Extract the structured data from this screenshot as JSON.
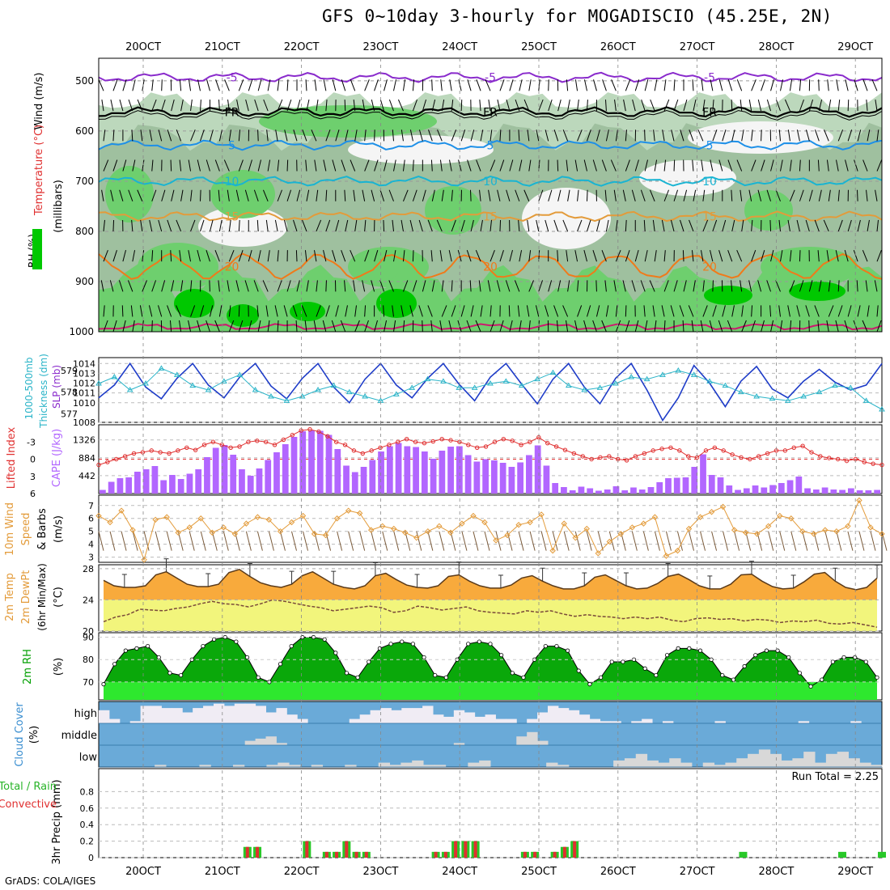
{
  "title": "GFS 0~10day 3-hourly for MOGADISCIO (45.25E, 2N)",
  "credit": "GrADS: COLA/IGES",
  "dates": [
    "20OCT",
    "21OCT",
    "22OCT",
    "23OCT",
    "24OCT",
    "25OCT",
    "26OCT",
    "27OCT",
    "28OCT",
    "29OCT"
  ],
  "colors": {
    "rh_dark": "#00c800",
    "rh_mid": "#6ecf6e",
    "rh_light": "#bcd8bc",
    "temp_line": "#f08c2a",
    "wind_line": "#000000",
    "slp_line": "#1e3cc8",
    "thick_line": "#2ab4c8",
    "cape_bar": "#b266ff",
    "li_line": "#e03030",
    "w10_line": "#e39b3a",
    "t2m_fill": "#f8aa3c",
    "dew_fill": "#f2f57c",
    "rh2_fill": "#00b400",
    "cloud_blue": "#6aaad8",
    "cloud_grey": "#d8d8d8",
    "precip_total": "#28c828",
    "precip_conv": "#e03030"
  },
  "chart_data": [
    {
      "type": "heatmap",
      "name": "upper-air cross section",
      "ylabel": "(millibars)",
      "legend": [
        "RH (%)",
        "Temperature (°C)",
        "Wind (m/s)"
      ],
      "yticks": [
        500,
        600,
        700,
        800,
        900,
        1000
      ],
      "ylim": [
        1000,
        455
      ],
      "temp_contours": [
        {
          "label": "-5",
          "pressure": 493
        },
        {
          "label": "FR",
          "pressure": 562
        },
        {
          "label": "5",
          "pressure": 628
        },
        {
          "label": "10",
          "pressure": 700
        },
        {
          "label": "15",
          "pressure": 770
        },
        {
          "label": "20",
          "pressure": 870
        }
      ]
    },
    {
      "type": "line",
      "name": "SLP and thickness",
      "ylabel_left": "1000-500mb Thickness (dm)",
      "ylabel_right": "SLP (mb)",
      "thick_ticks": [
        577,
        578,
        579
      ],
      "slp_ticks": [
        1008,
        1010,
        1011,
        1012,
        1013,
        1014
      ],
      "slp_range": [
        1008,
        1014.6
      ],
      "slp": [
        1010.5,
        1011.8,
        1014,
        1011.6,
        1010.4,
        1012.5,
        1014,
        1011.8,
        1010.5,
        1012.6,
        1014,
        1011.7,
        1010.4,
        1012.5,
        1014,
        1011.6,
        1010,
        1012.4,
        1014,
        1011.8,
        1010.5,
        1012.5,
        1014,
        1011.9,
        1010.2,
        1012.6,
        1014,
        1011.9,
        1009.9,
        1012.4,
        1014,
        1011.6,
        1009.9,
        1012.5,
        1014,
        1011.3,
        1008.2,
        1010.5,
        1013.8,
        1012,
        1009.6,
        1012.2,
        1013.7,
        1011.4,
        1010.5,
        1012.2,
        1013.4,
        1012.1,
        1011.3,
        1011.8,
        1014
      ],
      "thickness": [
        578.4,
        578.7,
        578.1,
        578.4,
        579.1,
        578.8,
        578.3,
        578.1,
        578.5,
        578.8,
        578.1,
        577.8,
        577.6,
        577.8,
        578.1,
        578.3,
        578.0,
        577.8,
        577.6,
        577.9,
        578.2,
        578.6,
        578.5,
        578.2,
        578.2,
        578.4,
        578.5,
        578.3,
        578.6,
        578.9,
        578.3,
        578.1,
        578.2,
        578.4,
        578.7,
        578.6,
        578.8,
        579.0,
        578.8,
        578.5,
        578.3,
        578.0,
        577.8,
        577.7,
        577.6,
        577.8,
        578.0,
        578.3,
        578.2,
        577.6,
        577.2
      ]
    },
    {
      "type": "bar",
      "name": "CAPE and lifted index",
      "ylabel_left": "Lifted Index",
      "ylabel_right": "CAPE (J/kg)",
      "cape_ticks": [
        442,
        884,
        1326
      ],
      "li_ticks": [
        -3,
        0,
        3,
        6
      ],
      "cape_range": [
        0,
        1700
      ],
      "li_range": [
        -6,
        6
      ],
      "cape": [
        90,
        290,
        380,
        400,
        540,
        600,
        680,
        330,
        460,
        360,
        490,
        600,
        900,
        1130,
        1200,
        960,
        600,
        440,
        620,
        830,
        1020,
        1220,
        1400,
        1540,
        1560,
        1550,
        1450,
        1100,
        690,
        530,
        660,
        830,
        1040,
        1170,
        1250,
        1170,
        1150,
        1040,
        860,
        1060,
        1160,
        1170,
        950,
        790,
        850,
        820,
        760,
        660,
        770,
        950,
        1190,
        690,
        260,
        160,
        80,
        170,
        130,
        70,
        100,
        180,
        80,
        150,
        100,
        160,
        280,
        380,
        390,
        400,
        660,
        970,
        460,
        400,
        200,
        90,
        130,
        200,
        150,
        210,
        260,
        330,
        420,
        130,
        100,
        150,
        100,
        90,
        130,
        80,
        80,
        90
      ],
      "li": [
        1.0,
        0.5,
        0.0,
        -0.5,
        -1.0,
        -1.2,
        -1.5,
        -1.2,
        -1.0,
        -1.5,
        -2.0,
        -1.6,
        -2.5,
        -3.0,
        -2.5,
        -2.0,
        -2.2,
        -3.0,
        -3.2,
        -3.0,
        -2.5,
        -3.4,
        -4.2,
        -5.0,
        -5.2,
        -4.8,
        -4.0,
        -3.0,
        -2.5,
        -1.5,
        -1.0,
        -1.5,
        -2.0,
        -2.5,
        -3.0,
        -3.5,
        -3.0,
        -2.8,
        -3.1,
        -3.5,
        -3.3,
        -3.0,
        -2.5,
        -2.0,
        -2.2,
        -3.0,
        -3.5,
        -3.2,
        -2.5,
        -3.0,
        -3.8,
        -2.8,
        -2.2,
        -1.6,
        -1.0,
        -0.5,
        0.0,
        -0.3,
        -0.5,
        0.0,
        0.2,
        -0.5,
        -1.0,
        -1.5,
        -1.8,
        -2.0,
        -1.5,
        -0.5,
        -0.3,
        -1.5,
        -2.0,
        -1.5,
        -0.8,
        -0.3,
        0.0,
        -0.5,
        -1.0,
        -1.5,
        -1.5,
        -2.0,
        -2.3,
        -1.2,
        -0.5,
        -0.2,
        0.0,
        0.3,
        0.0,
        0.5,
        0.8,
        1.0
      ]
    },
    {
      "type": "line",
      "name": "10m wind",
      "ylabel": "10m Wind Speed & Barbs (m/s)",
      "yticks": [
        3,
        4,
        5,
        6,
        7
      ],
      "ylim": [
        2.6,
        7.8
      ],
      "speed": [
        6.2,
        5.7,
        6.6,
        5.1,
        2.8,
        5.9,
        6.1,
        4.9,
        5.3,
        6.0,
        4.9,
        5.3,
        4.8,
        5.6,
        6.1,
        5.9,
        5.0,
        5.7,
        6.2,
        4.8,
        4.7,
        6.0,
        6.6,
        6.4,
        5.1,
        5.4,
        5.2,
        4.9,
        4.5,
        5.0,
        5.4,
        4.9,
        5.6,
        6.2,
        5.7,
        4.3,
        4.7,
        5.5,
        5.7,
        6.3,
        3.5,
        5.6,
        4.5,
        5.2,
        3.3,
        4.2,
        4.8,
        5.3,
        5.6,
        6.1,
        3.1,
        3.5,
        5.2,
        6.1,
        6.5,
        6.9,
        5.1,
        4.9,
        4.8,
        5.4,
        6.2,
        6.0,
        5.0,
        4.8,
        5.1,
        5.0,
        5.4,
        7.4,
        5.3,
        4.8
      ]
    },
    {
      "type": "area",
      "name": "2m temperature and dewpoint",
      "ylabel": "2m Temp 2m DewPt (6hr Min/Max) (°C)",
      "yticks": [
        20,
        24,
        28
      ],
      "ylim": [
        20,
        28.5
      ],
      "temp": [
        26.5,
        25.8,
        25.6,
        25.6,
        25.8,
        27.2,
        27.6,
        26.8,
        26.0,
        25.7,
        25.7,
        26.0,
        27.5,
        27.9,
        27.0,
        26.2,
        25.8,
        25.6,
        26.0,
        27.1,
        27.6,
        26.8,
        26.0,
        25.6,
        25.4,
        25.8,
        27.1,
        27.4,
        26.6,
        25.9,
        25.6,
        25.5,
        25.8,
        27.0,
        27.2,
        26.4,
        25.8,
        25.5,
        25.5,
        25.9,
        26.8,
        27.1,
        26.4,
        25.8,
        25.4,
        25.4,
        25.8,
        26.9,
        27.2,
        26.5,
        25.8,
        25.4,
        25.5,
        26.1,
        27.0,
        27.3,
        26.6,
        25.8,
        25.4,
        25.4,
        26.0,
        27.2,
        27.3,
        26.4,
        25.7,
        25.4,
        25.5,
        26.3,
        27.3,
        27.5,
        26.4,
        25.6,
        25.3,
        25.6,
        26.8
      ],
      "dew": [
        21.2,
        21.8,
        22.1,
        22.8,
        22.7,
        22.6,
        22.9,
        23.1,
        23.5,
        23.8,
        23.5,
        23.4,
        23.1,
        23.5,
        24.0,
        23.8,
        23.5,
        23.2,
        23.0,
        22.6,
        22.8,
        23.0,
        23.2,
        23.0,
        22.4,
        22.6,
        23.2,
        23.0,
        22.7,
        22.9,
        23.1,
        22.6,
        22.4,
        22.3,
        22.2,
        22.6,
        22.4,
        22.6,
        22.2,
        21.9,
        22.1,
        21.9,
        21.8,
        21.6,
        21.8,
        21.6,
        21.8,
        21.4,
        21.2,
        21.6,
        21.7,
        21.5,
        21.6,
        21.3,
        21.5,
        21.4,
        21.1,
        21.3,
        21.2,
        21.4,
        21.0,
        20.9,
        21.1,
        20.8,
        20.5
      ]
    },
    {
      "type": "area",
      "name": "2m relative humidity",
      "ylabel": "2m RH (%)",
      "yticks": [
        70,
        80,
        90
      ],
      "ylim": [
        62,
        92
      ],
      "rh": [
        69,
        78,
        84,
        85,
        86,
        81,
        74,
        73,
        80,
        86,
        89,
        90,
        88,
        81,
        72,
        70,
        78,
        86,
        90,
        90,
        89,
        83,
        74,
        72,
        79,
        85,
        87,
        88,
        87,
        81,
        73,
        72,
        80,
        87,
        88,
        87,
        82,
        74,
        72,
        80,
        86,
        86,
        84,
        75,
        69,
        72,
        79,
        79,
        80,
        76,
        73,
        82,
        85,
        85,
        84,
        80,
        73,
        71,
        77,
        82,
        84,
        84,
        81,
        74,
        68,
        71,
        79,
        81,
        81,
        79,
        72
      ]
    },
    {
      "type": "area",
      "name": "cloud cover",
      "ylabel": "Cloud Cover (%)",
      "rows": [
        "high",
        "middle",
        "low"
      ],
      "high": [
        60,
        20,
        0,
        10,
        80,
        80,
        70,
        70,
        50,
        70,
        80,
        90,
        80,
        90,
        90,
        80,
        50,
        70,
        40,
        20,
        0,
        0,
        0,
        0,
        20,
        40,
        60,
        70,
        60,
        70,
        70,
        80,
        40,
        30,
        60,
        50,
        30,
        40,
        20,
        20,
        0,
        20,
        50,
        80,
        70,
        60,
        40,
        20,
        10,
        10,
        0,
        10,
        20,
        0,
        10,
        0,
        0,
        0,
        0,
        10,
        0,
        0,
        0,
        0,
        0,
        0,
        0,
        10,
        0,
        0,
        0,
        0,
        10,
        0,
        0
      ],
      "middle": [
        0,
        0,
        0,
        0,
        0,
        0,
        0,
        0,
        0,
        0,
        0,
        0,
        0,
        0,
        20,
        30,
        40,
        10,
        0,
        0,
        0,
        0,
        0,
        0,
        0,
        0,
        0,
        0,
        0,
        0,
        0,
        0,
        0,
        0,
        10,
        0,
        0,
        0,
        0,
        0,
        40,
        60,
        20,
        0,
        0,
        0,
        0,
        0,
        0,
        0,
        0,
        0,
        0,
        0,
        0,
        0,
        0,
        0,
        0,
        0,
        0,
        0,
        0,
        0,
        0,
        0,
        0,
        0,
        0,
        0,
        0,
        0,
        0,
        0,
        0
      ],
      "low": [
        0,
        0,
        0,
        0,
        0,
        10,
        0,
        0,
        0,
        10,
        0,
        0,
        10,
        0,
        0,
        10,
        20,
        10,
        0,
        10,
        0,
        0,
        10,
        0,
        0,
        20,
        10,
        20,
        30,
        10,
        10,
        0,
        0,
        20,
        30,
        0,
        0,
        0,
        0,
        0,
        20,
        10,
        0,
        0,
        0,
        0,
        30,
        40,
        60,
        30,
        20,
        40,
        20,
        0,
        20,
        10,
        20,
        40,
        60,
        80,
        60,
        30,
        40,
        70,
        20,
        60,
        70,
        40,
        20,
        10
      ]
    },
    {
      "type": "bar",
      "name": "3hr precipitation",
      "ylabel": "3hr Precip (mm)",
      "legend": [
        "Total / Rain",
        "Convective"
      ],
      "annotation": "Run Total = 2.25",
      "yticks": [
        0,
        0.2,
        0.4,
        0.6,
        0.8
      ],
      "ylim": [
        0,
        1.0
      ],
      "bars": [
        {
          "t": 15,
          "total": 0.13,
          "conv": 0.13
        },
        {
          "t": 16,
          "total": 0.13,
          "conv": 0.13
        },
        {
          "t": 21,
          "total": 0.2,
          "conv": 0.2
        },
        {
          "t": 23,
          "total": 0.07,
          "conv": 0.07
        },
        {
          "t": 24,
          "total": 0.07,
          "conv": 0.07
        },
        {
          "t": 25,
          "total": 0.2,
          "conv": 0.2
        },
        {
          "t": 26,
          "total": 0.07,
          "conv": 0.07
        },
        {
          "t": 27,
          "total": 0.07,
          "conv": 0.07
        },
        {
          "t": 34,
          "total": 0.07,
          "conv": 0.07
        },
        {
          "t": 35,
          "total": 0.07,
          "conv": 0.07
        },
        {
          "t": 36,
          "total": 0.2,
          "conv": 0.2
        },
        {
          "t": 37,
          "total": 0.2,
          "conv": 0.2
        },
        {
          "t": 38,
          "total": 0.2,
          "conv": 0.2
        },
        {
          "t": 43,
          "total": 0.07,
          "conv": 0.07
        },
        {
          "t": 44,
          "total": 0.07,
          "conv": 0.07
        },
        {
          "t": 46,
          "total": 0.07,
          "conv": 0.07
        },
        {
          "t": 47,
          "total": 0.13,
          "conv": 0.13
        },
        {
          "t": 48,
          "total": 0.2,
          "conv": 0.2
        },
        {
          "t": 65,
          "total": 0.07,
          "conv": 0
        },
        {
          "t": 75,
          "total": 0.07,
          "conv": 0
        },
        {
          "t": 79,
          "total": 0.07,
          "conv": 0
        },
        {
          "t": 82,
          "total": 0.07,
          "conv": 0.07
        },
        {
          "t": 84,
          "total": 0.07,
          "conv": 0
        },
        {
          "t": 85,
          "total": 0.13,
          "conv": 0
        }
      ]
    }
  ]
}
